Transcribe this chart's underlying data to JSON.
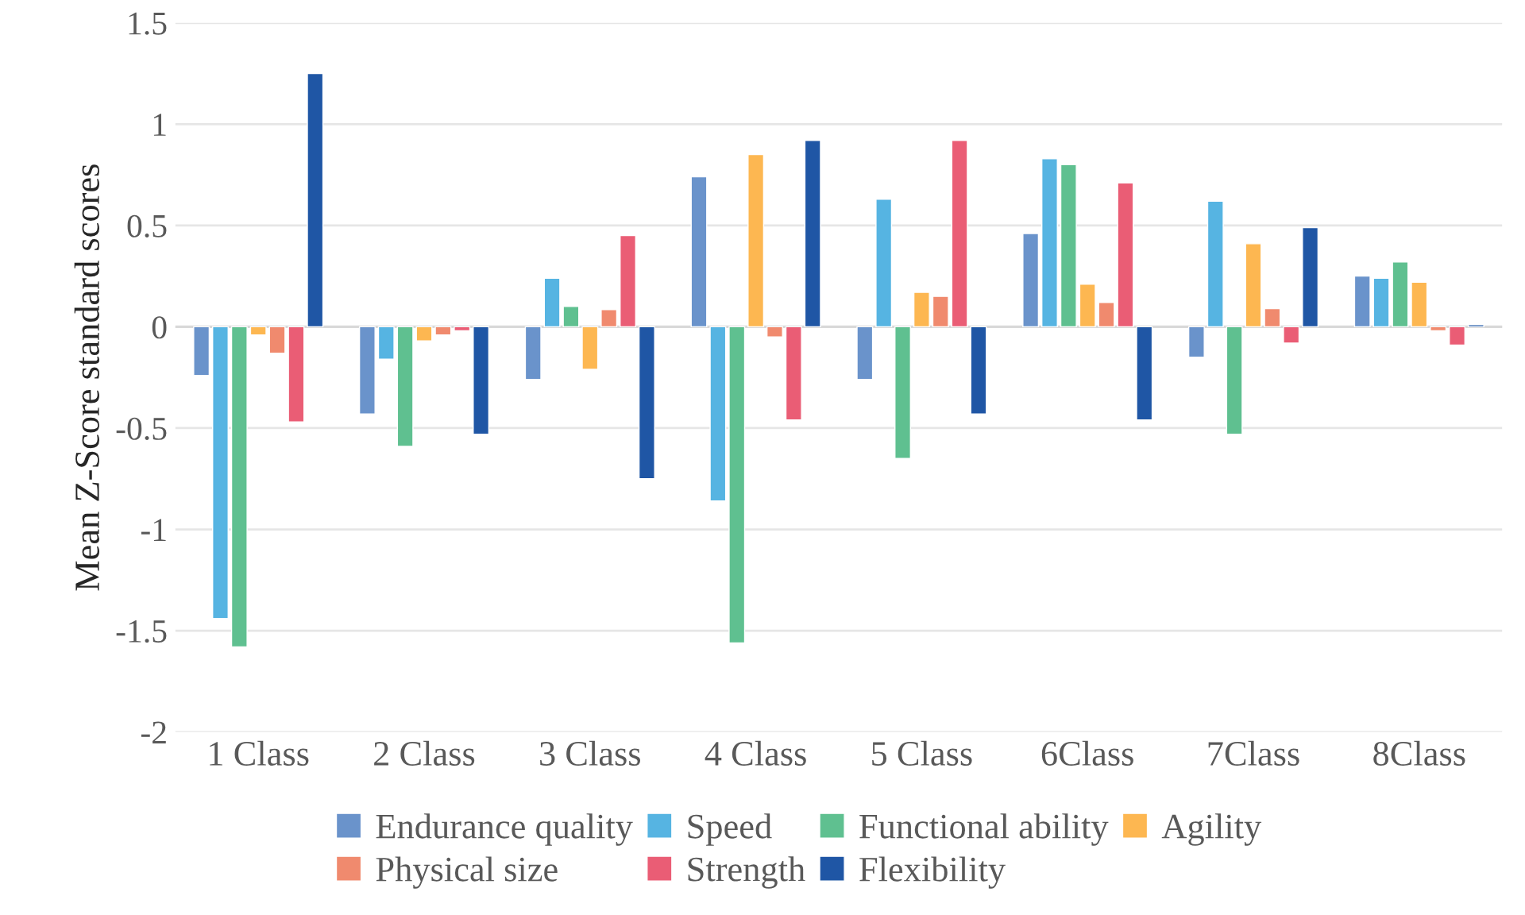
{
  "chart_data": {
    "type": "bar",
    "ylabel": "Mean Z-Score standard scores",
    "categories": [
      "1 Class",
      "2 Class",
      "3 Class",
      "4 Class",
      "5 Class",
      "6Class",
      "7Class",
      "8Class"
    ],
    "series": [
      {
        "name": "Endurance quality",
        "color": "#6a93cb",
        "values": [
          -0.24,
          -0.43,
          -0.26,
          0.74,
          -0.26,
          0.46,
          -0.15,
          0.25
        ]
      },
      {
        "name": "Speed",
        "color": "#56b4e2",
        "values": [
          -1.44,
          -0.16,
          0.24,
          -0.86,
          0.63,
          0.83,
          0.62,
          0.24
        ]
      },
      {
        "name": "Functional ability",
        "color": "#5fc090",
        "values": [
          -1.58,
          -0.59,
          0.1,
          -1.56,
          -0.65,
          0.8,
          -0.53,
          0.32
        ]
      },
      {
        "name": "Agility",
        "color": "#fdb751",
        "values": [
          -0.04,
          -0.07,
          -0.21,
          0.85,
          0.17,
          0.21,
          0.41,
          0.22
        ]
      },
      {
        "name": "Physical size",
        "color": "#f08a6e",
        "values": [
          -0.13,
          -0.04,
          0.085,
          -0.05,
          0.15,
          0.12,
          0.09,
          -0.02
        ]
      },
      {
        "name": "Strength",
        "color": "#ea5d75",
        "values": [
          -0.47,
          -0.02,
          0.45,
          -0.46,
          0.92,
          0.71,
          -0.08,
          -0.09
        ]
      },
      {
        "name": "Flexibility",
        "color": "#1f56a5",
        "values": [
          1.25,
          -0.53,
          -0.75,
          0.92,
          -0.43,
          -0.46,
          0.49,
          0.01
        ]
      }
    ],
    "ylim": [
      -2,
      1.5
    ],
    "yticks": [
      -2,
      -1.5,
      -1,
      -0.5,
      0,
      0.5,
      1,
      1.5
    ],
    "grid": "y",
    "legend": "bottom"
  }
}
